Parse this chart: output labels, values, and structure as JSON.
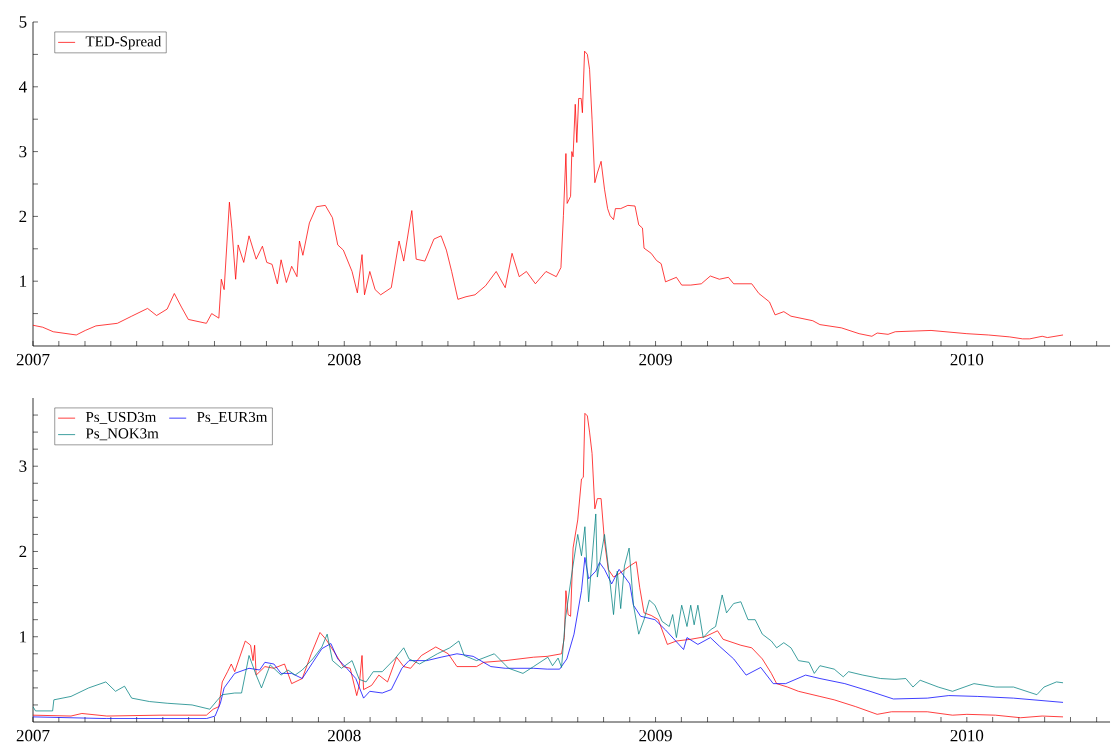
{
  "chart_data": [
    {
      "type": "line",
      "legend": "top left",
      "xlim": [
        2007,
        2010.46
      ],
      "ylim": [
        0,
        5
      ],
      "xticks": [
        2007,
        {
          "value": 2007.083,
          "label": null
        },
        {
          "value": 2007.167,
          "label": null
        },
        {
          "value": 2007.25,
          "label": null
        },
        {
          "value": 2007.333,
          "label": null
        },
        {
          "value": 2007.417,
          "label": null
        },
        {
          "value": 2007.5,
          "label": null
        },
        {
          "value": 2007.583,
          "label": null
        },
        {
          "value": 2007.667,
          "label": null
        },
        {
          "value": 2007.75,
          "label": null
        },
        {
          "value": 2007.833,
          "label": null
        },
        {
          "value": 2007.917,
          "label": null
        },
        2008,
        {
          "value": 2008.083,
          "label": null
        },
        {
          "value": 2008.167,
          "label": null
        },
        {
          "value": 2008.25,
          "label": null
        },
        {
          "value": 2008.333,
          "label": null
        },
        {
          "value": 2008.417,
          "label": null
        },
        {
          "value": 2008.5,
          "label": null
        },
        {
          "value": 2008.583,
          "label": null
        },
        {
          "value": 2008.667,
          "label": null
        },
        {
          "value": 2008.75,
          "label": null
        },
        {
          "value": 2008.833,
          "label": null
        },
        {
          "value": 2008.917,
          "label": null
        },
        2009,
        {
          "value": 2009.083,
          "label": null
        },
        {
          "value": 2009.167,
          "label": null
        },
        {
          "value": 2009.25,
          "label": null
        },
        {
          "value": 2009.333,
          "label": null
        },
        {
          "value": 2009.417,
          "label": null
        },
        {
          "value": 2009.5,
          "label": null
        },
        {
          "value": 2009.583,
          "label": null
        },
        {
          "value": 2009.667,
          "label": null
        },
        {
          "value": 2009.75,
          "label": null
        },
        {
          "value": 2009.833,
          "label": null
        },
        {
          "value": 2009.917,
          "label": null
        },
        2010,
        {
          "value": 2010.083,
          "label": null
        },
        {
          "value": 2010.167,
          "label": null
        },
        {
          "value": 2010.25,
          "label": null
        },
        {
          "value": 2010.333,
          "label": null
        },
        {
          "value": 2010.417,
          "label": null
        }
      ],
      "yticks": [
        {
          "value": 0.5,
          "label": null
        },
        1,
        {
          "value": 1.5,
          "label": null
        },
        2,
        {
          "value": 2.5,
          "label": null
        },
        3,
        {
          "value": 3.5,
          "label": null
        },
        4,
        {
          "value": 4.5,
          "label": null
        },
        5
      ],
      "series": [
        {
          "name": "TED-Spread",
          "color": "#ff0000",
          "x": [
            2007.0,
            2007.031,
            2007.065,
            2007.139,
            2007.168,
            2007.202,
            2007.271,
            2007.317,
            2007.368,
            2007.397,
            2007.431,
            2007.454,
            2007.477,
            2007.499,
            2007.557,
            2007.574,
            2007.597,
            2007.605,
            2007.614,
            2007.631,
            2007.639,
            2007.651,
            2007.659,
            2007.677,
            2007.694,
            2007.717,
            2007.737,
            2007.751,
            2007.768,
            2007.785,
            2007.797,
            2007.814,
            2007.831,
            2007.848,
            2007.856,
            2007.867,
            2007.888,
            2007.911,
            2007.939,
            2007.962,
            2007.979,
            2007.997,
            2008.025,
            2008.042,
            2008.057,
            2008.065,
            2008.082,
            2008.099,
            2008.117,
            2008.151,
            2008.176,
            2008.191,
            2008.217,
            2008.231,
            2008.259,
            2008.288,
            2008.311,
            2008.328,
            2008.345,
            2008.365,
            2008.391,
            2008.42,
            2008.454,
            2008.488,
            2008.517,
            2008.539,
            2008.562,
            2008.585,
            2008.614,
            2008.648,
            2008.681,
            2008.696,
            2008.704,
            2008.712,
            2008.716,
            2008.727,
            2008.731,
            2008.735,
            2008.742,
            2008.747,
            2008.753,
            2008.761,
            2008.765,
            2008.772,
            2008.781,
            2008.788,
            2008.796,
            2008.805,
            2008.813,
            2008.825,
            2008.836,
            2008.846,
            2008.854,
            2008.865,
            2008.871,
            2008.888,
            2008.911,
            2008.934,
            2008.946,
            2008.958,
            2008.963,
            2008.986,
            2009.003,
            2009.018,
            2009.032,
            2009.067,
            2009.084,
            2009.113,
            2009.147,
            2009.176,
            2009.205,
            2009.234,
            2009.251,
            2009.309,
            2009.332,
            2009.366,
            2009.384,
            2009.412,
            2009.435,
            2009.505,
            2009.528,
            2009.597,
            2009.654,
            2009.695,
            2009.712,
            2009.747,
            2009.77,
            2009.885,
            2010.0,
            2010.069,
            2010.138,
            2010.179,
            2010.202,
            2010.242,
            2010.259,
            2010.309
          ],
          "values": [
            0.32,
            0.29,
            0.22,
            0.17,
            0.24,
            0.31,
            0.35,
            0.46,
            0.58,
            0.47,
            0.57,
            0.81,
            0.6,
            0.41,
            0.35,
            0.5,
            0.43,
            1.03,
            0.87,
            2.22,
            1.81,
            1.03,
            1.56,
            1.29,
            1.7,
            1.34,
            1.54,
            1.29,
            1.26,
            0.96,
            1.33,
            0.98,
            1.23,
            1.07,
            1.62,
            1.4,
            1.9,
            2.15,
            2.17,
            1.98,
            1.56,
            1.48,
            1.15,
            0.82,
            1.41,
            0.79,
            1.15,
            0.87,
            0.79,
            0.9,
            1.62,
            1.31,
            2.09,
            1.34,
            1.31,
            1.65,
            1.7,
            1.48,
            1.15,
            0.72,
            0.76,
            0.79,
            0.93,
            1.15,
            0.9,
            1.43,
            1.07,
            1.15,
            0.96,
            1.15,
            1.07,
            1.21,
            2.01,
            2.97,
            2.2,
            2.31,
            3.0,
            2.92,
            3.73,
            3.14,
            3.82,
            3.82,
            3.6,
            4.55,
            4.5,
            4.27,
            3.5,
            2.52,
            2.67,
            2.85,
            2.42,
            2.12,
            2.01,
            1.95,
            2.12,
            2.12,
            2.17,
            2.16,
            1.87,
            1.82,
            1.51,
            1.43,
            1.32,
            1.27,
            0.99,
            1.06,
            0.94,
            0.94,
            0.96,
            1.08,
            1.03,
            1.06,
            0.96,
            0.96,
            0.81,
            0.68,
            0.48,
            0.53,
            0.46,
            0.39,
            0.33,
            0.28,
            0.19,
            0.15,
            0.2,
            0.18,
            0.22,
            0.24,
            0.19,
            0.17,
            0.14,
            0.11,
            0.11,
            0.15,
            0.13,
            0.17
          ]
        }
      ]
    },
    {
      "type": "line",
      "legend": "top left",
      "xlim": [
        2007,
        2010.46
      ],
      "ylim": [
        0,
        3.8
      ],
      "xticks": [
        2007,
        {
          "value": 2007.083,
          "label": null
        },
        {
          "value": 2007.167,
          "label": null
        },
        {
          "value": 2007.25,
          "label": null
        },
        {
          "value": 2007.333,
          "label": null
        },
        {
          "value": 2007.417,
          "label": null
        },
        {
          "value": 2007.5,
          "label": null
        },
        {
          "value": 2007.583,
          "label": null
        },
        {
          "value": 2007.667,
          "label": null
        },
        {
          "value": 2007.75,
          "label": null
        },
        {
          "value": 2007.833,
          "label": null
        },
        {
          "value": 2007.917,
          "label": null
        },
        2008,
        {
          "value": 2008.083,
          "label": null
        },
        {
          "value": 2008.167,
          "label": null
        },
        {
          "value": 2008.25,
          "label": null
        },
        {
          "value": 2008.333,
          "label": null
        },
        {
          "value": 2008.417,
          "label": null
        },
        {
          "value": 2008.5,
          "label": null
        },
        {
          "value": 2008.583,
          "label": null
        },
        {
          "value": 2008.667,
          "label": null
        },
        {
          "value": 2008.75,
          "label": null
        },
        {
          "value": 2008.833,
          "label": null
        },
        {
          "value": 2008.917,
          "label": null
        },
        2009,
        {
          "value": 2009.083,
          "label": null
        },
        {
          "value": 2009.167,
          "label": null
        },
        {
          "value": 2009.25,
          "label": null
        },
        {
          "value": 2009.333,
          "label": null
        },
        {
          "value": 2009.417,
          "label": null
        },
        {
          "value": 2009.5,
          "label": null
        },
        {
          "value": 2009.583,
          "label": null
        },
        {
          "value": 2009.667,
          "label": null
        },
        {
          "value": 2009.75,
          "label": null
        },
        {
          "value": 2009.833,
          "label": null
        },
        {
          "value": 2009.917,
          "label": null
        },
        2010,
        {
          "value": 2010.083,
          "label": null
        },
        {
          "value": 2010.167,
          "label": null
        },
        {
          "value": 2010.25,
          "label": null
        },
        {
          "value": 2010.333,
          "label": null
        },
        {
          "value": 2010.417,
          "label": null
        }
      ],
      "yticks": [
        {
          "value": 0.2,
          "label": null
        },
        {
          "value": 0.4,
          "label": null
        },
        {
          "value": 0.6,
          "label": null
        },
        {
          "value": 0.8,
          "label": null
        },
        1,
        {
          "value": 1.2,
          "label": null
        },
        {
          "value": 1.4,
          "label": null
        },
        {
          "value": 1.6,
          "label": null
        },
        {
          "value": 1.8,
          "label": null
        },
        2,
        {
          "value": 2.2,
          "label": null
        },
        {
          "value": 2.4,
          "label": null
        },
        {
          "value": 2.6,
          "label": null
        },
        {
          "value": 2.8,
          "label": null
        },
        3,
        {
          "value": 3.2,
          "label": null
        },
        {
          "value": 3.4,
          "label": null
        },
        {
          "value": 3.6,
          "label": null
        }
      ],
      "series": [
        {
          "name": "Ps_USD3m",
          "color": "#ff0000",
          "x": [
            2007.0,
            2007.122,
            2007.157,
            2007.237,
            2007.408,
            2007.557,
            2007.579,
            2007.597,
            2007.608,
            2007.625,
            2007.637,
            2007.648,
            2007.682,
            2007.699,
            2007.707,
            2007.712,
            2007.717,
            2007.745,
            2007.774,
            2007.808,
            2007.831,
            2007.865,
            2007.894,
            2007.922,
            2007.941,
            2007.968,
            2007.997,
            2008.019,
            2008.04,
            2008.048,
            2008.057,
            2008.062,
            2008.088,
            2008.111,
            2008.139,
            2008.168,
            2008.191,
            2008.213,
            2008.248,
            2008.294,
            2008.334,
            2008.362,
            2008.425,
            2008.448,
            2008.517,
            2008.608,
            2008.652,
            2008.698,
            2008.707,
            2008.712,
            2008.719,
            2008.727,
            2008.735,
            2008.75,
            2008.762,
            2008.768,
            2008.773,
            2008.781,
            2008.788,
            2008.796,
            2008.805,
            2008.813,
            2008.825,
            2008.836,
            2008.848,
            2008.865,
            2008.883,
            2008.917,
            2008.938,
            2008.949,
            2008.963,
            2008.986,
            2009.009,
            2009.038,
            2009.067,
            2009.113,
            2009.159,
            2009.199,
            2009.217,
            2009.274,
            2009.309,
            2009.343,
            2009.372,
            2009.389,
            2009.424,
            2009.459,
            2009.528,
            2009.574,
            2009.643,
            2009.712,
            2009.758,
            2009.873,
            2009.954,
            2010.0,
            2010.092,
            2010.173,
            2010.242,
            2010.309
          ],
          "values": [
            0.08,
            0.07,
            0.1,
            0.07,
            0.08,
            0.08,
            0.15,
            0.18,
            0.47,
            0.59,
            0.68,
            0.59,
            0.95,
            0.9,
            0.72,
            0.9,
            0.55,
            0.65,
            0.63,
            0.68,
            0.45,
            0.51,
            0.8,
            1.05,
            0.97,
            0.82,
            0.65,
            0.63,
            0.31,
            0.43,
            0.78,
            0.38,
            0.43,
            0.55,
            0.47,
            0.76,
            0.65,
            0.63,
            0.78,
            0.88,
            0.8,
            0.65,
            0.65,
            0.7,
            0.72,
            0.76,
            0.77,
            0.8,
            0.99,
            1.54,
            1.26,
            1.24,
            2.04,
            2.37,
            2.85,
            2.87,
            3.62,
            3.59,
            3.4,
            3.15,
            2.5,
            2.62,
            2.62,
            2.12,
            1.79,
            1.7,
            1.74,
            1.83,
            1.88,
            1.58,
            1.28,
            1.25,
            1.2,
            0.91,
            0.95,
            0.97,
            1.0,
            1.07,
            0.97,
            0.9,
            0.87,
            0.74,
            0.57,
            0.45,
            0.41,
            0.36,
            0.3,
            0.26,
            0.18,
            0.09,
            0.12,
            0.12,
            0.08,
            0.09,
            0.08,
            0.05,
            0.07,
            0.06
          ]
        },
        {
          "name": "Ps_EUR3m",
          "color": "#0000ff",
          "x": [
            2007.0,
            2007.237,
            2007.557,
            2007.585,
            2007.602,
            2007.614,
            2007.648,
            2007.694,
            2007.728,
            2007.745,
            2007.774,
            2007.797,
            2007.831,
            2007.865,
            2007.899,
            2007.928,
            2007.957,
            2007.979,
            2008.008,
            2008.037,
            2008.062,
            2008.082,
            2008.122,
            2008.151,
            2008.185,
            2008.208,
            2008.265,
            2008.311,
            2008.362,
            2008.414,
            2008.471,
            2008.517,
            2008.608,
            2008.652,
            2008.692,
            2008.715,
            2008.738,
            2008.762,
            2008.773,
            2008.785,
            2008.808,
            2008.82,
            2008.836,
            2008.859,
            2008.883,
            2008.917,
            2008.929,
            2008.952,
            2008.998,
            2009.032,
            2009.09,
            2009.101,
            2009.136,
            2009.176,
            2009.205,
            2009.251,
            2009.291,
            2009.338,
            2009.378,
            2009.418,
            2009.482,
            2009.528,
            2009.608,
            2009.689,
            2009.764,
            2009.873,
            2009.942,
            2010.035,
            2010.15,
            2010.309
          ],
          "values": [
            0.06,
            0.04,
            0.04,
            0.07,
            0.22,
            0.4,
            0.57,
            0.63,
            0.61,
            0.7,
            0.68,
            0.57,
            0.57,
            0.51,
            0.7,
            0.86,
            0.92,
            0.74,
            0.63,
            0.51,
            0.28,
            0.36,
            0.34,
            0.38,
            0.63,
            0.72,
            0.72,
            0.76,
            0.8,
            0.77,
            0.65,
            0.63,
            0.63,
            0.62,
            0.62,
            0.74,
            1.03,
            1.54,
            1.93,
            1.68,
            1.77,
            1.87,
            1.79,
            1.62,
            1.79,
            1.62,
            1.37,
            1.24,
            1.2,
            1.08,
            0.85,
            0.99,
            0.91,
            0.99,
            0.89,
            0.74,
            0.55,
            0.64,
            0.45,
            0.45,
            0.55,
            0.51,
            0.45,
            0.36,
            0.27,
            0.28,
            0.31,
            0.3,
            0.28,
            0.23
          ]
        },
        {
          "name": "Ps_NOK3m",
          "color": "#008080",
          "x": [
            2007.0,
            2007.008,
            2007.063,
            2007.067,
            2007.122,
            2007.179,
            2007.234,
            2007.265,
            2007.294,
            2007.317,
            2007.374,
            2007.431,
            2007.511,
            2007.568,
            2007.591,
            2007.608,
            2007.648,
            2007.67,
            2007.694,
            2007.717,
            2007.734,
            2007.762,
            2007.797,
            2007.819,
            2007.842,
            2007.865,
            2007.899,
            2007.928,
            2007.945,
            2007.962,
            2007.991,
            2008.025,
            2008.048,
            2008.07,
            2008.093,
            2008.122,
            2008.162,
            2008.191,
            2008.208,
            2008.242,
            2008.299,
            2008.339,
            2008.368,
            2008.385,
            2008.425,
            2008.482,
            2008.528,
            2008.574,
            2008.608,
            2008.654,
            2008.669,
            2008.687,
            2008.698,
            2008.71,
            2008.733,
            2008.75,
            2008.762,
            2008.773,
            2008.785,
            2008.796,
            2008.808,
            2008.813,
            2008.836,
            2008.848,
            2008.865,
            2008.877,
            2008.888,
            2008.9,
            2008.915,
            2008.929,
            2008.946,
            2008.963,
            2008.98,
            2008.998,
            2009.021,
            2009.044,
            2009.055,
            2009.067,
            2009.084,
            2009.101,
            2009.113,
            2009.124,
            2009.136,
            2009.153,
            2009.176,
            2009.193,
            2009.214,
            2009.228,
            2009.251,
            2009.274,
            2009.297,
            2009.32,
            2009.343,
            2009.372,
            2009.389,
            2009.412,
            2009.435,
            2009.459,
            2009.493,
            2009.51,
            2009.528,
            2009.574,
            2009.603,
            2009.62,
            2009.666,
            2009.723,
            2009.769,
            2009.804,
            2009.827,
            2009.85,
            2009.908,
            2009.954,
            2010.023,
            2010.092,
            2010.15,
            2010.225,
            2010.248,
            2010.288,
            2010.309
          ],
          "values": [
            0.18,
            0.13,
            0.13,
            0.26,
            0.3,
            0.4,
            0.47,
            0.36,
            0.42,
            0.28,
            0.24,
            0.22,
            0.2,
            0.15,
            0.25,
            0.32,
            0.34,
            0.34,
            0.78,
            0.55,
            0.4,
            0.67,
            0.55,
            0.61,
            0.55,
            0.61,
            0.74,
            0.88,
            1.03,
            0.72,
            0.63,
            0.72,
            0.5,
            0.47,
            0.59,
            0.59,
            0.74,
            0.87,
            0.74,
            0.68,
            0.8,
            0.87,
            0.95,
            0.78,
            0.72,
            0.8,
            0.63,
            0.57,
            0.65,
            0.76,
            0.66,
            0.75,
            0.64,
            1.2,
            1.79,
            2.2,
            1.95,
            2.29,
            1.41,
            1.91,
            2.44,
            1.7,
            2.2,
            1.83,
            1.26,
            1.77,
            1.33,
            1.83,
            2.04,
            1.37,
            1.03,
            1.2,
            1.43,
            1.37,
            1.18,
            1.12,
            1.26,
            0.99,
            1.37,
            1.12,
            1.37,
            1.14,
            1.37,
            0.99,
            1.08,
            1.12,
            1.49,
            1.28,
            1.39,
            1.41,
            1.2,
            1.2,
            1.03,
            0.95,
            0.87,
            0.93,
            0.87,
            0.72,
            0.7,
            0.57,
            0.66,
            0.62,
            0.53,
            0.59,
            0.55,
            0.51,
            0.5,
            0.51,
            0.41,
            0.49,
            0.41,
            0.36,
            0.45,
            0.41,
            0.41,
            0.32,
            0.41,
            0.47,
            0.46
          ]
        }
      ]
    }
  ]
}
